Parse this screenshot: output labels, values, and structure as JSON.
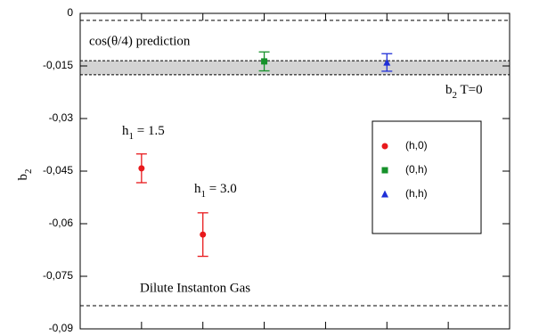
{
  "chart_data": {
    "type": "scatter",
    "y_label": {
      "main": "b",
      "sub": "2"
    },
    "xlim": [
      0,
      7
    ],
    "xticks": [
      1,
      2,
      3,
      4,
      5,
      6
    ],
    "ylim": [
      -0.09,
      0
    ],
    "yticks": [
      0,
      {
        "value": -0.015,
        "label": "-0,015"
      },
      {
        "value": -0.03,
        "label": "-0,03"
      },
      {
        "value": -0.045,
        "label": "-0,045"
      },
      {
        "value": -0.06,
        "label": "-0,06"
      },
      {
        "value": -0.075,
        "label": "-0,075"
      },
      {
        "value": -0.09,
        "label": "-0,09"
      }
    ],
    "series": [
      {
        "name": "(h,0)",
        "color": "#e8191c",
        "marker": "circle",
        "x": [
          1,
          2
        ],
        "values": [
          -0.0442,
          -0.0631
        ],
        "errors": [
          0.0041,
          0.0062
        ]
      },
      {
        "name": "(0,h)",
        "color": "#16912a",
        "marker": "square",
        "x": [
          3
        ],
        "values": [
          -0.0137
        ],
        "errors": [
          0.0027
        ]
      },
      {
        "name": "(h,h)",
        "color": "#1f2fd8",
        "marker": "triangle",
        "x": [
          5
        ],
        "values": [
          -0.014
        ],
        "errors": [
          0.0025
        ]
      }
    ],
    "reference_lines": [
      {
        "label": "cos(θ/4) prediction",
        "value": -0.002
      },
      {
        "label": "Dilute Instanton Gas",
        "value": -0.0834
      }
    ],
    "band": {
      "range": [
        -0.0135,
        -0.0175
      ],
      "label": {
        "main": "b",
        "sub": "2",
        "tail": " T=0"
      }
    },
    "annotations": [
      {
        "main": "h",
        "sub": "1",
        "tail": " = 1.5"
      },
      {
        "main": "h",
        "sub": "1",
        "tail": " = 3.0"
      }
    ]
  }
}
